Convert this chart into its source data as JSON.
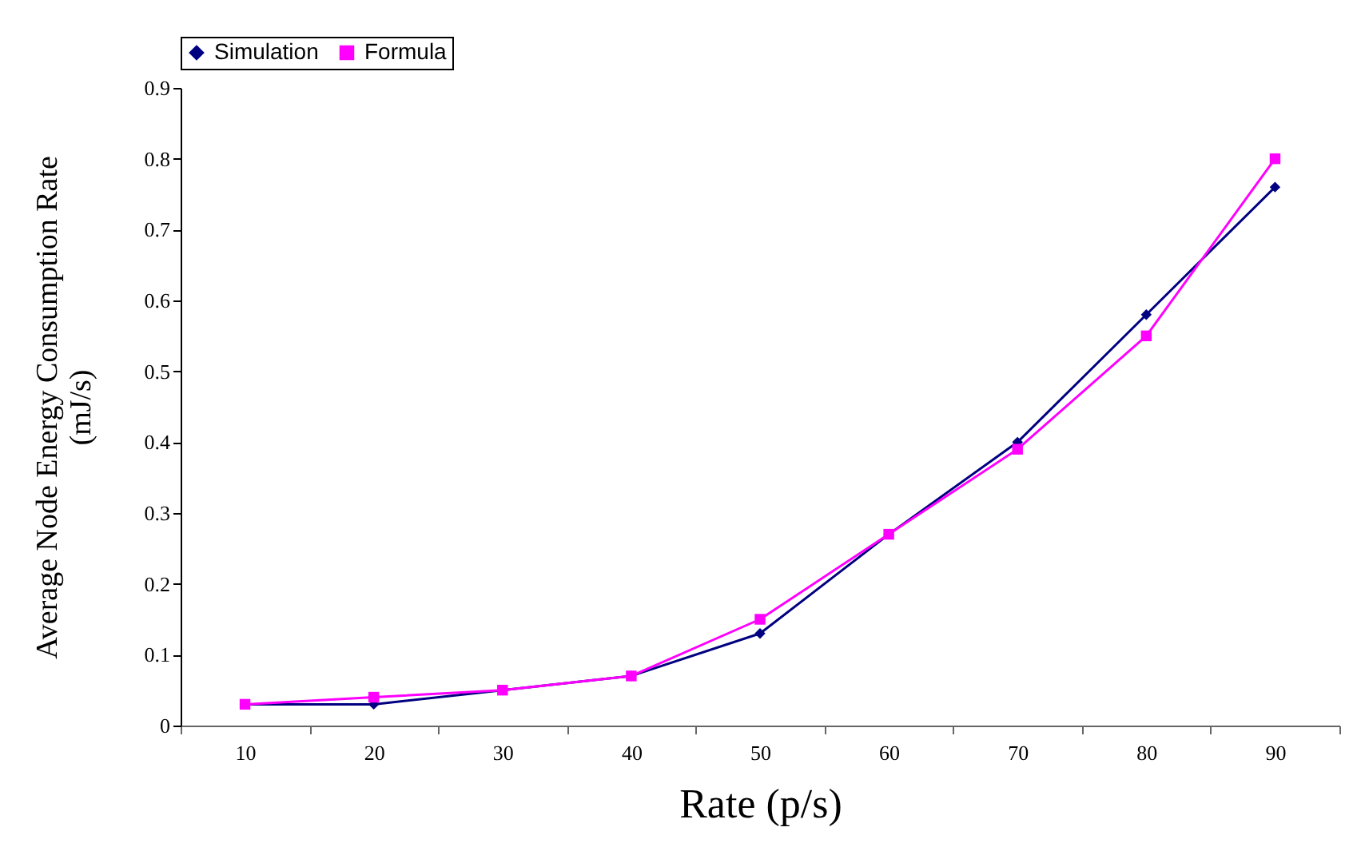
{
  "chart_data": {
    "type": "line",
    "xlabel": "Rate (p/s)",
    "ylabel": "Average Node Energy Consumption Rate\n(mJ/s)",
    "categories": [
      "10",
      "20",
      "30",
      "40",
      "50",
      "60",
      "70",
      "80",
      "90"
    ],
    "series": [
      {
        "name": "Simulation",
        "color": "#000080",
        "marker": "diamond",
        "values": [
          0.03,
          0.03,
          0.05,
          0.07,
          0.13,
          0.27,
          0.4,
          0.58,
          0.76
        ]
      },
      {
        "name": "Formula",
        "color": "#ff00ff",
        "marker": "square",
        "values": [
          0.03,
          0.04,
          0.05,
          0.07,
          0.15,
          0.27,
          0.39,
          0.55,
          0.8
        ]
      }
    ],
    "ylim": [
      0,
      0.9
    ],
    "yticks": [
      0,
      0.1,
      0.2,
      0.3,
      0.4,
      0.5,
      0.6,
      0.7,
      0.8,
      0.9
    ],
    "grid": false,
    "legend": "top",
    "line_style": "solid"
  }
}
